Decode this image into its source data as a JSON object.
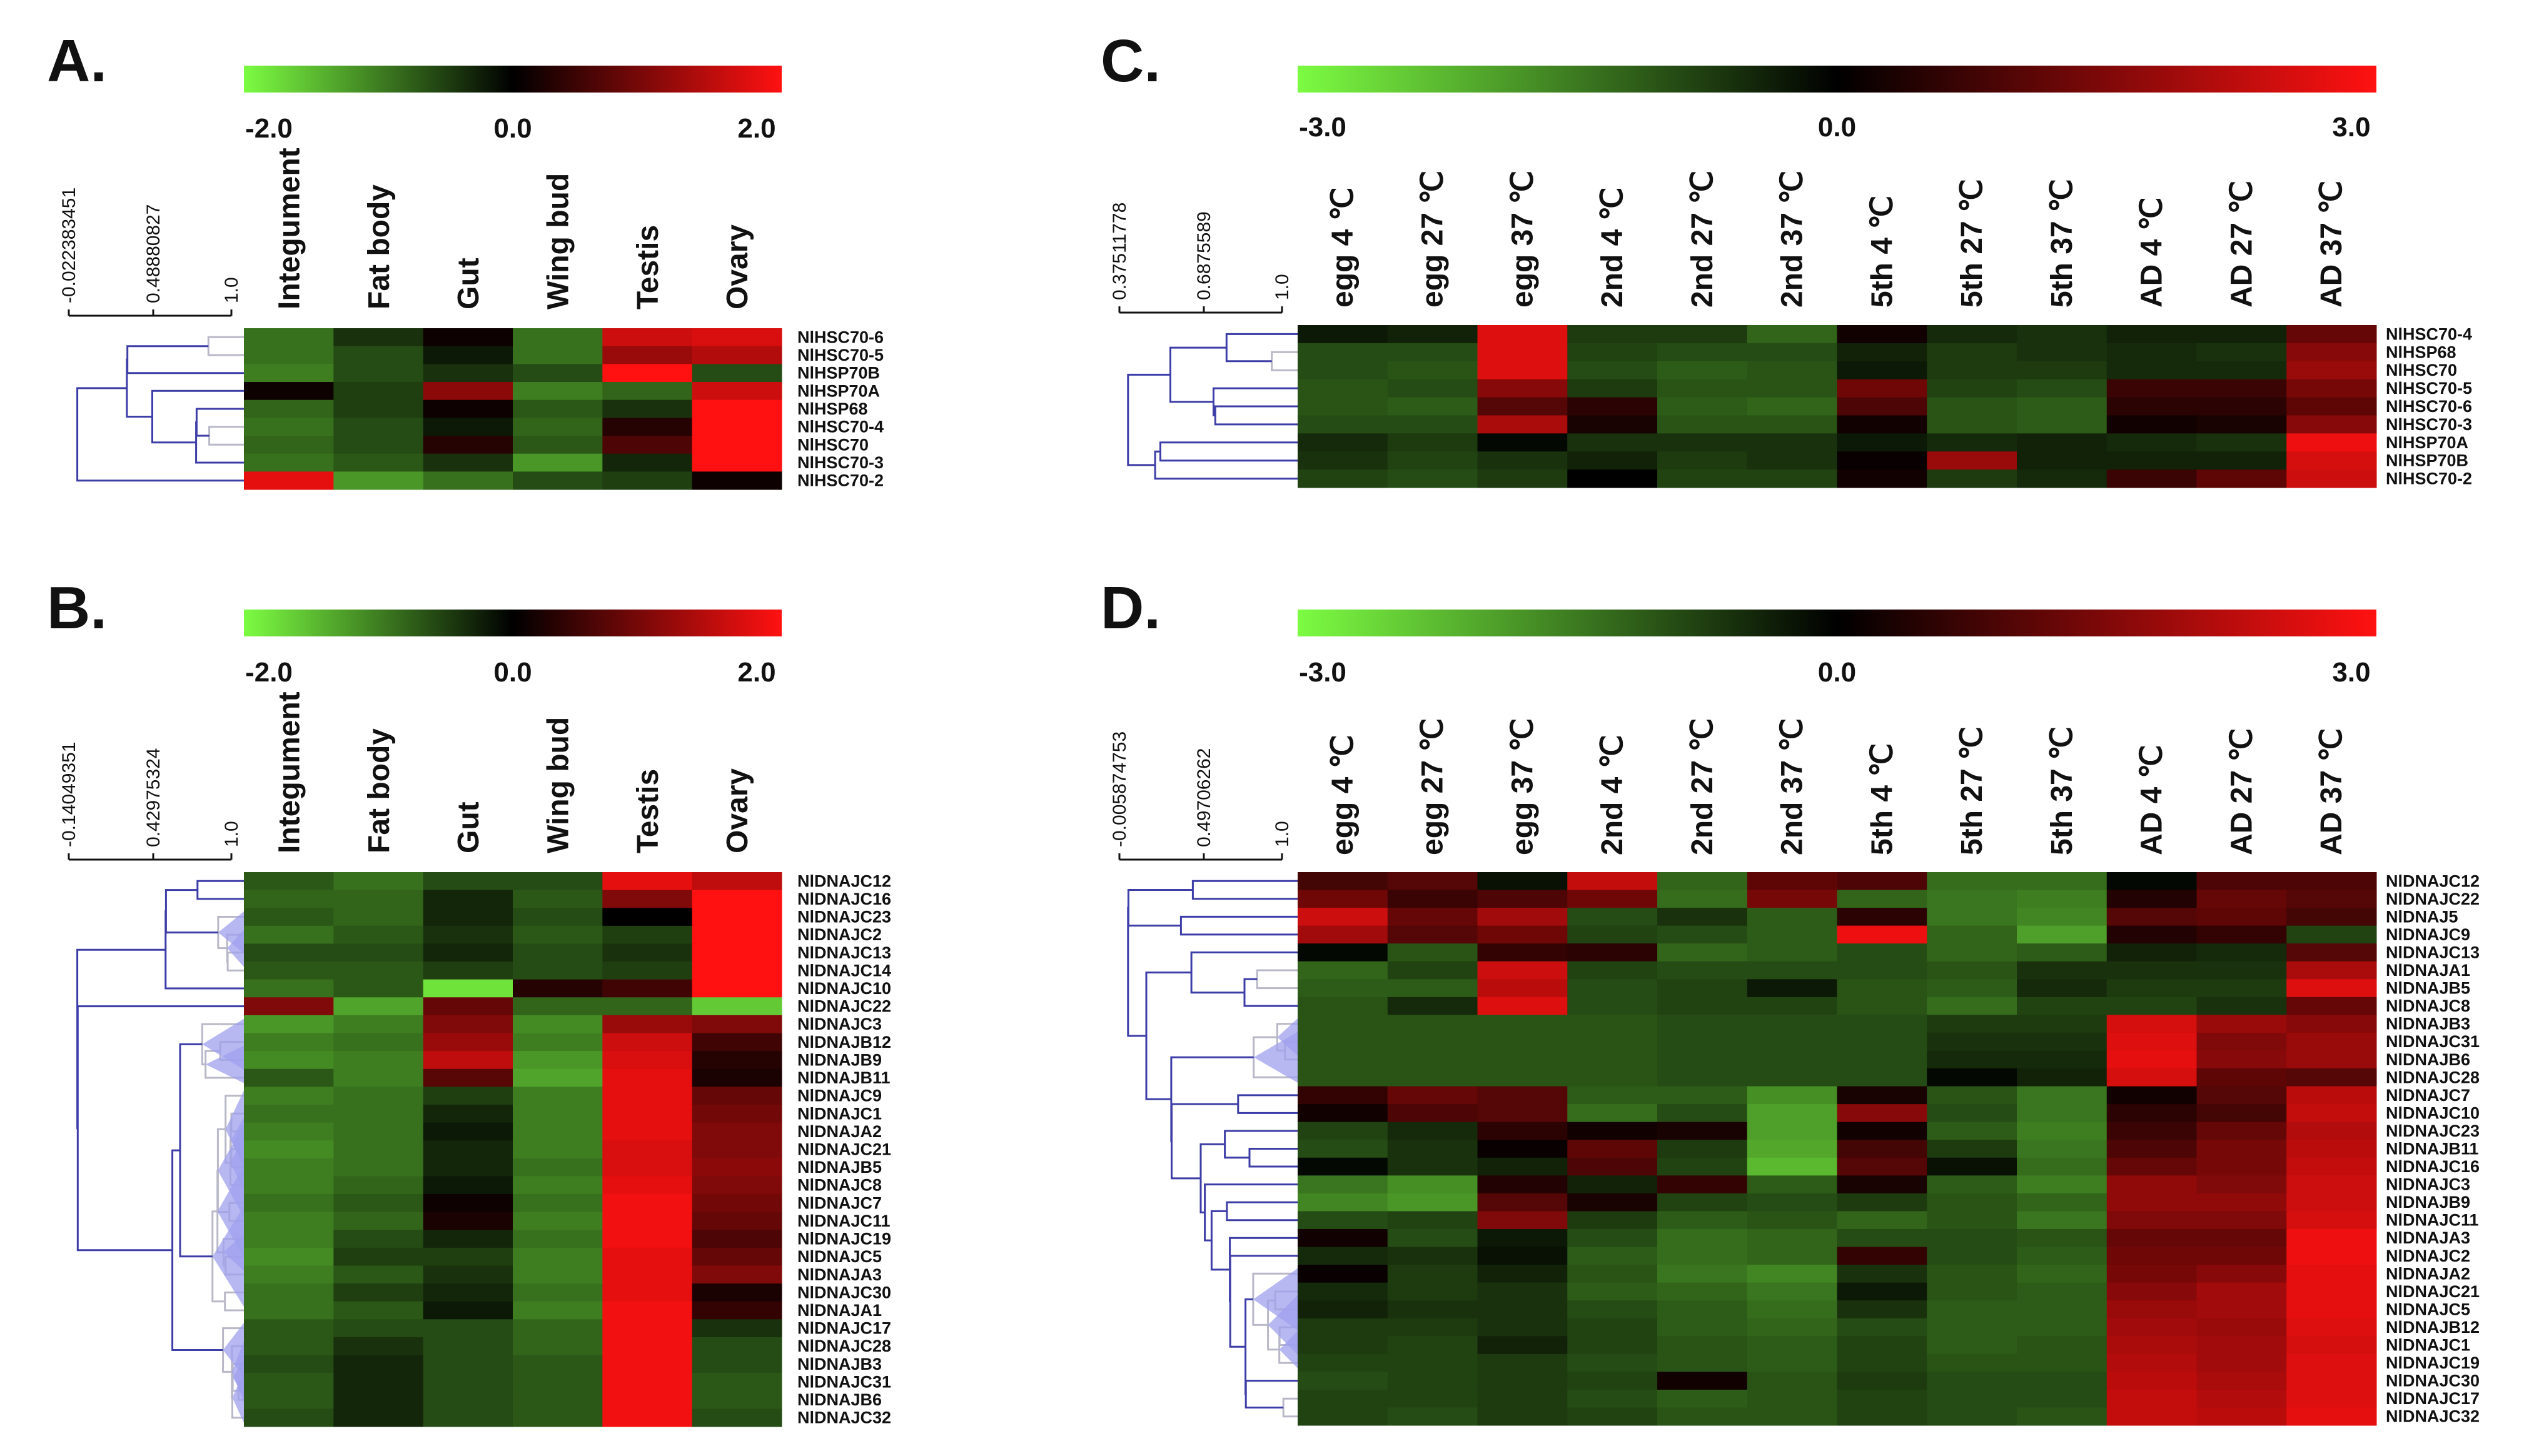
{
  "colors": {
    "low": "#7cfc42",
    "mid": "#000000",
    "high": "#ff1111",
    "dendrogram": "#3d3da8",
    "dendrogram_fill": "#9fa0ee"
  },
  "chart_data": [
    {
      "id": "A",
      "type": "heatmap",
      "panel_label": "A.",
      "scale": {
        "min": -2.0,
        "max": 2.0,
        "tick_labels": [
          "-2.0",
          "0.0",
          "2.0"
        ]
      },
      "tree_scale": [
        "-0.022383451",
        "0.48880827",
        "1.0"
      ],
      "columns": [
        "Integument",
        "Fat body",
        "Gut",
        "Wing bud",
        "Testis",
        "Ovary"
      ],
      "rows": [
        "NlHSC70-6",
        "NlHSC70-5",
        "NlHSP70B",
        "NlHSP70A",
        "NlHSP68",
        "NlHSC70-4",
        "NlHSC70",
        "NlHSC70-3",
        "NlHSC70-2"
      ],
      "values": [
        [
          -0.9,
          -0.4,
          0.1,
          -0.9,
          1.6,
          1.7
        ],
        [
          -0.9,
          -0.6,
          -0.2,
          -0.9,
          1.2,
          1.4
        ],
        [
          -1.0,
          -0.6,
          -0.4,
          -0.6,
          2.0,
          -0.6
        ],
        [
          0.1,
          -0.5,
          1.1,
          -1.0,
          -0.8,
          1.6
        ],
        [
          -0.8,
          -0.5,
          0.1,
          -0.7,
          -0.4,
          2.0
        ],
        [
          -0.9,
          -0.6,
          -0.2,
          -0.8,
          0.3,
          2.0
        ],
        [
          -0.8,
          -0.6,
          0.3,
          -0.7,
          0.6,
          2.0
        ],
        [
          -0.9,
          -0.7,
          -0.4,
          -1.2,
          -0.3,
          2.0
        ],
        [
          1.8,
          -1.2,
          -0.9,
          -0.6,
          -0.5,
          0.1
        ]
      ]
    },
    {
      "id": "B",
      "type": "heatmap",
      "panel_label": "B.",
      "scale": {
        "min": -2.0,
        "max": 2.0,
        "tick_labels": [
          "-2.0",
          "0.0",
          "2.0"
        ]
      },
      "tree_scale": [
        "-0.14049351",
        "0.42975324",
        "1.0"
      ],
      "columns": [
        "Integument",
        "Fat body",
        "Gut",
        "Wing bud",
        "Testis",
        "Ovary"
      ],
      "rows": [
        "NlDNAJC12",
        "NlDNAJC16",
        "NlDNAJC23",
        "NlDNAJC2",
        "NlDNAJC13",
        "NlDNAJC14",
        "NlDNAJC10",
        "NlDNAJC22",
        "NlDNAJC3",
        "NlDNAJB12",
        "NlDNAJB9",
        "NlDNAJB11",
        "NlDNAJC9",
        "NlDNAJC1",
        "NlDNAJA2",
        "NlDNAJC21",
        "NlDNAJB5",
        "NlDNAJC8",
        "NlDNAJC7",
        "NlDNAJC11",
        "NlDNAJC19",
        "NlDNAJC5",
        "NlDNAJA3",
        "NlDNAJC30",
        "NlDNAJA1",
        "NlDNAJC17",
        "NlDNAJC28",
        "NlDNAJB3",
        "NlDNAJC31",
        "NlDNAJB6",
        "NlDNAJC32"
      ],
      "values": [
        [
          -0.7,
          -0.9,
          -0.6,
          -0.6,
          1.8,
          1.5
        ],
        [
          -0.8,
          -0.8,
          -0.3,
          -0.7,
          1.0,
          2.0
        ],
        [
          -0.7,
          -0.8,
          -0.3,
          -0.6,
          0.0,
          2.0
        ],
        [
          -0.9,
          -0.7,
          -0.4,
          -0.7,
          -0.5,
          2.0
        ],
        [
          -0.6,
          -0.6,
          -0.3,
          -0.6,
          -0.4,
          2.0
        ],
        [
          -0.7,
          -0.7,
          -0.5,
          -0.6,
          -0.5,
          2.0
        ],
        [
          -0.9,
          -0.7,
          -1.8,
          0.3,
          0.5,
          2.0
        ],
        [
          1.0,
          -1.3,
          0.8,
          -0.8,
          -0.8,
          -1.6
        ],
        [
          -1.2,
          -1.0,
          1.0,
          -1.1,
          1.2,
          1.0
        ],
        [
          -1.0,
          -0.9,
          1.2,
          -1.0,
          1.6,
          0.5
        ],
        [
          -1.1,
          -1.0,
          1.5,
          -1.2,
          1.7,
          0.3
        ],
        [
          -0.7,
          -1.0,
          0.7,
          -1.3,
          1.8,
          0.2
        ],
        [
          -1.0,
          -0.9,
          -0.5,
          -1.0,
          1.8,
          0.8
        ],
        [
          -0.9,
          -0.9,
          -0.3,
          -1.0,
          1.8,
          0.9
        ],
        [
          -1.0,
          -0.9,
          -0.2,
          -1.0,
          1.8,
          1.0
        ],
        [
          -1.1,
          -0.9,
          -0.3,
          -1.0,
          1.7,
          1.0
        ],
        [
          -1.0,
          -0.9,
          -0.3,
          -0.9,
          1.7,
          1.1
        ],
        [
          -1.0,
          -0.8,
          -0.2,
          -1.0,
          1.8,
          1.0
        ],
        [
          -0.9,
          -0.7,
          0.1,
          -0.9,
          1.9,
          0.9
        ],
        [
          -1.0,
          -0.8,
          0.2,
          -1.0,
          1.9,
          0.8
        ],
        [
          -1.0,
          -0.6,
          -0.3,
          -0.9,
          1.9,
          0.6
        ],
        [
          -1.1,
          -0.5,
          -0.5,
          -1.0,
          1.8,
          0.8
        ],
        [
          -1.0,
          -0.7,
          -0.4,
          -1.0,
          1.8,
          1.0
        ],
        [
          -0.9,
          -0.5,
          -0.3,
          -0.9,
          1.8,
          0.2
        ],
        [
          -0.9,
          -0.7,
          -0.2,
          -1.0,
          1.9,
          0.4
        ],
        [
          -0.7,
          -0.6,
          -0.6,
          -0.8,
          1.9,
          -0.4
        ],
        [
          -0.7,
          -0.4,
          -0.6,
          -0.8,
          1.9,
          -0.6
        ],
        [
          -0.6,
          -0.3,
          -0.6,
          -0.7,
          1.9,
          -0.6
        ],
        [
          -0.7,
          -0.3,
          -0.6,
          -0.7,
          1.9,
          -0.7
        ],
        [
          -0.7,
          -0.3,
          -0.6,
          -0.7,
          1.9,
          -0.7
        ],
        [
          -0.6,
          -0.3,
          -0.6,
          -0.7,
          1.9,
          -0.6
        ]
      ]
    },
    {
      "id": "C",
      "type": "heatmap",
      "panel_label": "C.",
      "scale": {
        "min": -3.0,
        "max": 3.0,
        "tick_labels": [
          "-3.0",
          "0.0",
          "3.0"
        ]
      },
      "tree_scale": [
        "0.37511778",
        "0.6875589",
        "1.0"
      ],
      "columns": [
        "egg 4 ℃",
        "egg 27 ℃",
        "egg 37 ℃",
        "2nd 4 ℃",
        "2nd 27 ℃",
        "2nd 37 ℃",
        "5th 4 ℃",
        "5th 27 ℃",
        "5th 37 ℃",
        "AD 4 ℃",
        "AD 27 ℃",
        "AD 37 ℃"
      ],
      "rows": [
        "NlHSC70-4",
        "NlHSP68",
        "NlHSC70",
        "NlHSC70-5",
        "NlHSC70-6",
        "NlHSC70-3",
        "NlHSP70A",
        "NlHSP70B",
        "NlHSC70-2"
      ],
      "values": [
        [
          -0.3,
          -0.4,
          2.6,
          -0.7,
          -0.7,
          -1.2,
          0.2,
          -0.5,
          -0.6,
          -0.4,
          -0.4,
          1.2
        ],
        [
          -0.9,
          -0.9,
          2.6,
          -0.8,
          -0.9,
          -0.9,
          -0.4,
          -0.7,
          -0.6,
          -0.5,
          -0.6,
          1.6
        ],
        [
          -0.9,
          -1.0,
          2.6,
          -0.9,
          -1.1,
          -1.0,
          -0.3,
          -0.7,
          -0.7,
          -0.5,
          -0.5,
          1.8
        ],
        [
          -1.0,
          -0.9,
          1.6,
          -0.7,
          -1.0,
          -1.0,
          1.3,
          -0.8,
          -0.9,
          0.7,
          0.7,
          1.4
        ],
        [
          -1.0,
          -1.1,
          1.0,
          0.5,
          -1.1,
          -1.2,
          0.9,
          -1.0,
          -1.1,
          0.5,
          0.5,
          1.1
        ],
        [
          -0.9,
          -0.9,
          2.0,
          0.3,
          -1.0,
          -1.0,
          0.2,
          -1.0,
          -1.1,
          0.2,
          0.3,
          1.6
        ],
        [
          -0.5,
          -0.7,
          -0.1,
          -0.6,
          -0.6,
          -0.6,
          -0.3,
          -0.5,
          -0.4,
          -0.5,
          -0.6,
          2.8
        ],
        [
          -0.6,
          -0.8,
          -0.6,
          -0.4,
          -0.7,
          -0.6,
          0.1,
          1.8,
          -0.4,
          -0.4,
          -0.4,
          2.5
        ],
        [
          -0.8,
          -0.9,
          -0.7,
          0.0,
          -0.8,
          -0.8,
          0.2,
          -0.7,
          -0.5,
          0.7,
          1.1,
          2.4
        ]
      ]
    },
    {
      "id": "D",
      "type": "heatmap",
      "panel_label": "D.",
      "scale": {
        "min": -3.0,
        "max": 3.0,
        "tick_labels": [
          "-3.0",
          "0.0",
          "3.0"
        ]
      },
      "tree_scale": [
        "-0.005874753",
        "0.49706262",
        "1.0"
      ],
      "columns": [
        "egg 4 ℃",
        "egg 27 ℃",
        "egg 37 ℃",
        "2nd 4 ℃",
        "2nd 27 ℃",
        "2nd 37 ℃",
        "5th 4 ℃",
        "5th 27 ℃",
        "5th 37 ℃",
        "AD 4 ℃",
        "AD 27 ℃",
        "AD 37 ℃"
      ],
      "rows": [
        "NlDNAJC12",
        "NlDNAJC22",
        "NlDNAJ5",
        "NlDNAJC9",
        "NlDNAJC13",
        "NlDNAJA1",
        "NlDNAJB5",
        "NlDNAJC8",
        "NlDNAJB3",
        "NlDNAJC31",
        "NlDNAJB6",
        "NlDNAJC28",
        "NlDNAJC7",
        "NlDNAJC10",
        "NlDNAJC23",
        "NlDNAJB11",
        "NlDNAJC16",
        "NlDNAJC3",
        "NlDNAJB9",
        "NlDNAJC11",
        "NlDNAJA3",
        "NlDNAJC2",
        "NlDNAJA2",
        "NlDNAJC21",
        "NlDNAJC5",
        "NlDNAJB12",
        "NlDNAJC1",
        "NlDNAJC19",
        "NlDNAJC30",
        "NlDNAJC17",
        "NlDNAJC32"
      ],
      "values": [
        [
          0.8,
          1.0,
          -0.2,
          2.3,
          -1.2,
          1.1,
          0.9,
          -1.3,
          -1.3,
          -0.1,
          0.9,
          0.9
        ],
        [
          1.3,
          0.7,
          0.9,
          1.3,
          -1.3,
          1.4,
          -1.2,
          -1.4,
          -1.5,
          0.4,
          1.2,
          1.0
        ],
        [
          2.4,
          1.2,
          1.9,
          -0.9,
          -0.6,
          -1.1,
          0.5,
          -1.4,
          -1.6,
          1.0,
          1.1,
          0.8
        ],
        [
          1.9,
          1.0,
          1.3,
          -0.8,
          -0.9,
          -1.1,
          2.8,
          -1.2,
          -1.9,
          0.4,
          0.6,
          -0.8
        ],
        [
          -0.1,
          -1.0,
          0.6,
          0.5,
          -1.2,
          -1.1,
          -0.9,
          -1.2,
          -1.1,
          -0.4,
          -0.5,
          1.0
        ],
        [
          -1.2,
          -0.8,
          2.4,
          -0.8,
          -0.9,
          -0.9,
          -0.9,
          -1.0,
          -0.6,
          -0.6,
          -0.6,
          2.0
        ],
        [
          -1.1,
          -1.1,
          2.2,
          -0.9,
          -0.8,
          -0.3,
          -1.0,
          -1.1,
          -0.5,
          -0.7,
          -0.7,
          2.6
        ],
        [
          -1.0,
          -0.5,
          2.6,
          -0.9,
          -0.8,
          -0.8,
          -1.0,
          -1.3,
          -0.8,
          -0.8,
          -0.6,
          1.2
        ],
        [
          -1.0,
          -1.0,
          -1.0,
          -1.0,
          -0.9,
          -0.9,
          -0.9,
          -0.7,
          -0.7,
          2.5,
          1.8,
          1.6
        ],
        [
          -1.0,
          -1.0,
          -1.0,
          -1.0,
          -0.9,
          -0.9,
          -0.9,
          -0.6,
          -0.6,
          2.6,
          1.5,
          1.8
        ],
        [
          -1.0,
          -1.0,
          -1.0,
          -1.0,
          -0.9,
          -0.9,
          -0.9,
          -0.5,
          -0.5,
          2.7,
          1.6,
          1.8
        ],
        [
          -1.0,
          -1.0,
          -1.0,
          -1.0,
          -0.9,
          -0.9,
          -0.9,
          -0.1,
          -0.4,
          2.5,
          1.1,
          1.0
        ],
        [
          0.6,
          1.2,
          1.0,
          -1.1,
          -1.1,
          -1.7,
          0.3,
          -1.0,
          -1.4,
          0.2,
          1.0,
          2.2
        ],
        [
          0.2,
          0.9,
          1.0,
          -1.3,
          -0.9,
          -1.9,
          1.6,
          -0.9,
          -1.4,
          0.5,
          0.8,
          2.3
        ],
        [
          -0.8,
          -0.5,
          0.5,
          0.2,
          0.3,
          -1.9,
          0.2,
          -1.1,
          -1.5,
          0.7,
          1.2,
          2.1
        ],
        [
          -0.9,
          -0.6,
          0.1,
          1.1,
          -0.7,
          -2.0,
          0.8,
          -0.7,
          -1.4,
          0.9,
          1.4,
          2.2
        ],
        [
          -0.1,
          -0.6,
          -0.4,
          0.9,
          -0.8,
          -2.2,
          1.0,
          -0.2,
          -1.3,
          1.2,
          1.4,
          2.3
        ],
        [
          -1.4,
          -1.7,
          0.4,
          -0.4,
          0.6,
          -1.1,
          0.3,
          -1.1,
          -1.5,
          1.7,
          1.5,
          2.4
        ],
        [
          -1.6,
          -1.8,
          1.0,
          0.3,
          -0.8,
          -0.9,
          -0.7,
          -1.0,
          -1.2,
          1.7,
          1.7,
          2.4
        ],
        [
          -0.9,
          -0.8,
          1.5,
          -0.7,
          -1.1,
          -1.0,
          -1.2,
          -1.0,
          -1.4,
          1.5,
          1.5,
          2.5
        ],
        [
          0.2,
          -0.9,
          -0.3,
          -0.9,
          -1.3,
          -1.2,
          -0.9,
          -0.9,
          -1.0,
          1.2,
          1.2,
          2.8
        ],
        [
          -0.5,
          -0.6,
          -0.2,
          -1.1,
          -1.3,
          -1.2,
          0.6,
          -0.9,
          -1.1,
          1.3,
          1.3,
          2.8
        ],
        [
          0.1,
          -0.7,
          -0.4,
          -1.0,
          -1.4,
          -1.6,
          -0.6,
          -1.0,
          -1.2,
          1.4,
          1.6,
          2.7
        ],
        [
          -0.5,
          -0.7,
          -0.6,
          -1.1,
          -1.2,
          -1.4,
          -0.3,
          -1.0,
          -1.1,
          1.6,
          1.9,
          2.7
        ],
        [
          -0.4,
          -0.6,
          -0.6,
          -0.9,
          -1.1,
          -1.3,
          -0.6,
          -1.1,
          -1.1,
          1.8,
          1.9,
          2.7
        ],
        [
          -0.7,
          -0.7,
          -0.6,
          -0.8,
          -1.1,
          -1.2,
          -0.9,
          -1.1,
          -1.1,
          1.9,
          1.8,
          2.6
        ],
        [
          -0.7,
          -0.8,
          -0.4,
          -0.8,
          -1.0,
          -1.1,
          -0.8,
          -1.1,
          -1.0,
          2.0,
          1.9,
          2.5
        ],
        [
          -0.8,
          -0.8,
          -0.7,
          -0.9,
          -1.0,
          -1.1,
          -0.8,
          -1.0,
          -1.0,
          2.1,
          1.9,
          2.6
        ],
        [
          -0.9,
          -0.8,
          -0.7,
          -0.8,
          0.2,
          -1.0,
          -0.7,
          -0.9,
          -0.9,
          2.2,
          2.0,
          2.6
        ],
        [
          -0.8,
          -0.8,
          -0.7,
          -0.9,
          -1.1,
          -1.0,
          -0.8,
          -0.9,
          -0.9,
          2.3,
          2.1,
          2.6
        ],
        [
          -0.8,
          -0.9,
          -0.7,
          -0.8,
          -1.0,
          -1.0,
          -0.8,
          -0.9,
          -1.0,
          2.3,
          2.2,
          2.7
        ]
      ]
    }
  ]
}
